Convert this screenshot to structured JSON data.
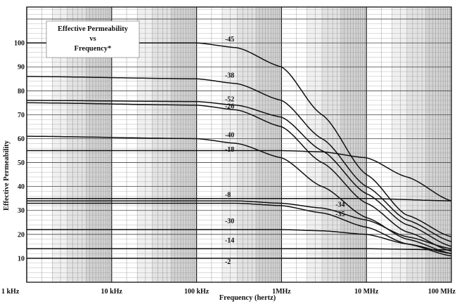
{
  "chart_data": {
    "type": "line",
    "title_lines": [
      "Effective Permeability",
      "vs",
      "Frequency*"
    ],
    "xlabel": "Frequency (hertz)",
    "ylabel": "Effective Permeability",
    "x_scale": "log",
    "x_range_hz": [
      1000,
      100000000
    ],
    "ylim": [
      0,
      115
    ],
    "grid": true,
    "legend": "top-left",
    "x_ticks": [
      {
        "value": 1000,
        "label": "1 kHz"
      },
      {
        "value": 10000,
        "label": "10 kHz"
      },
      {
        "value": 100000,
        "label": "100 kHz"
      },
      {
        "value": 1000000,
        "label": "1MHz"
      },
      {
        "value": 10000000,
        "label": "10 MHz"
      },
      {
        "value": 100000000,
        "label": "100 MHz"
      }
    ],
    "y_ticks": [
      {
        "value": 10,
        "label": "10"
      },
      {
        "value": 20,
        "label": "20"
      },
      {
        "value": 30,
        "label": "30"
      },
      {
        "value": 40,
        "label": "40"
      },
      {
        "value": 50,
        "label": "50"
      },
      {
        "value": 60,
        "label": "60"
      },
      {
        "value": 70,
        "label": "70"
      },
      {
        "value": 80,
        "label": "80"
      },
      {
        "value": 90,
        "label": "90"
      },
      {
        "value": 100,
        "label": "100"
      }
    ],
    "series": [
      {
        "name": "-45",
        "label_at": {
          "x": 200000,
          "y": 100
        },
        "points": [
          [
            1000,
            100
          ],
          [
            100000,
            100
          ],
          [
            300000,
            98
          ],
          [
            1000000,
            90
          ],
          [
            3000000,
            70
          ],
          [
            10000000,
            45
          ],
          [
            30000000,
            28
          ],
          [
            100000000,
            19
          ]
        ]
      },
      {
        "name": "-38",
        "label_at": {
          "x": 200000,
          "y": 85
        },
        "points": [
          [
            1000,
            86
          ],
          [
            100000,
            85
          ],
          [
            300000,
            83
          ],
          [
            1000000,
            76
          ],
          [
            3000000,
            60
          ],
          [
            10000000,
            40
          ],
          [
            30000000,
            26
          ],
          [
            100000000,
            17
          ]
        ]
      },
      {
        "name": "-52",
        "label_at": {
          "x": 200000,
          "y": 75
        },
        "points": [
          [
            1000,
            76
          ],
          [
            100000,
            75.5
          ],
          [
            300000,
            74
          ],
          [
            1000000,
            69
          ],
          [
            3000000,
            55
          ],
          [
            10000000,
            37
          ],
          [
            30000000,
            24
          ],
          [
            100000000,
            15
          ]
        ]
      },
      {
        "name": "-26",
        "label_at": {
          "x": 200000,
          "y": 72
        },
        "points": [
          [
            1000,
            75
          ],
          [
            100000,
            74
          ],
          [
            300000,
            72
          ],
          [
            1000000,
            65
          ],
          [
            3000000,
            50
          ],
          [
            10000000,
            33
          ],
          [
            30000000,
            21
          ],
          [
            100000000,
            13
          ]
        ]
      },
      {
        "name": "-40",
        "label_at": {
          "x": 200000,
          "y": 60
        },
        "points": [
          [
            1000,
            61
          ],
          [
            100000,
            60
          ],
          [
            300000,
            58
          ],
          [
            1000000,
            52
          ],
          [
            3000000,
            40
          ],
          [
            10000000,
            27
          ],
          [
            30000000,
            18
          ],
          [
            100000000,
            12
          ]
        ]
      },
      {
        "name": "-18",
        "label_at": {
          "x": 200000,
          "y": 54
        },
        "points": [
          [
            1000,
            55
          ],
          [
            300000,
            55
          ],
          [
            1000000,
            55
          ],
          [
            3000000,
            54.5
          ],
          [
            10000000,
            52
          ],
          [
            30000000,
            44
          ],
          [
            100000000,
            34
          ]
        ]
      },
      {
        "name": "-8",
        "label_at": {
          "x": 200000,
          "y": 35
        },
        "points": [
          [
            1000,
            35
          ],
          [
            1000000,
            35
          ],
          [
            10000000,
            35
          ],
          [
            100000000,
            34
          ]
        ]
      },
      {
        "name": "-34",
        "label_at": {
          "x": 4000000,
          "y": 31
        },
        "points": [
          [
            1000,
            34
          ],
          [
            300000,
            34
          ],
          [
            1000000,
            33
          ],
          [
            3000000,
            31
          ],
          [
            10000000,
            26
          ],
          [
            30000000,
            19
          ],
          [
            100000000,
            14
          ]
        ]
      },
      {
        "name": "-35",
        "label_at": {
          "x": 4000000,
          "y": 27
        },
        "points": [
          [
            1000,
            33
          ],
          [
            300000,
            33
          ],
          [
            1000000,
            32
          ],
          [
            3000000,
            29
          ],
          [
            10000000,
            23
          ],
          [
            30000000,
            16
          ],
          [
            100000000,
            11
          ]
        ]
      },
      {
        "name": "-30",
        "label_at": {
          "x": 200000,
          "y": 24
        },
        "points": [
          [
            1000,
            22
          ],
          [
            1000000,
            22
          ],
          [
            3000000,
            21.5
          ],
          [
            10000000,
            20
          ],
          [
            30000000,
            16
          ],
          [
            100000000,
            12
          ]
        ]
      },
      {
        "name": "-14",
        "label_at": {
          "x": 200000,
          "y": 16
        },
        "points": [
          [
            1000,
            14
          ],
          [
            1000000,
            14
          ],
          [
            10000000,
            14
          ],
          [
            100000000,
            13.5
          ]
        ]
      },
      {
        "name": "-2",
        "label_at": {
          "x": 200000,
          "y": 7
        },
        "points": [
          [
            1000,
            10
          ],
          [
            1000000,
            10
          ],
          [
            100000000,
            10
          ]
        ]
      }
    ]
  }
}
